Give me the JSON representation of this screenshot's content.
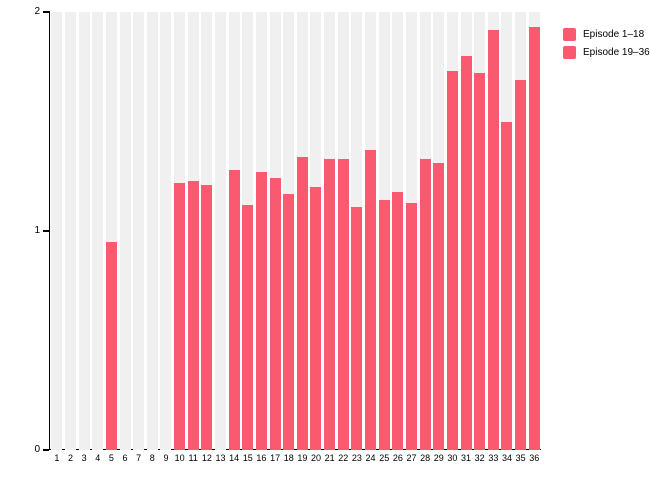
{
  "chart_data": {
    "type": "bar",
    "title": "",
    "xlabel": "",
    "ylabel": "",
    "ylim": [
      0,
      2
    ],
    "yticks": [
      "0",
      "1",
      "2"
    ],
    "grid": false,
    "legend_position": "top-right",
    "bar_color": "#FA5A70",
    "stripe_color": "#F0F0F0",
    "categories": [
      "1",
      "2",
      "3",
      "4",
      "5",
      "6",
      "7",
      "8",
      "9",
      "10",
      "11",
      "12",
      "13",
      "14",
      "15",
      "16",
      "17",
      "18",
      "19",
      "20",
      "21",
      "22",
      "23",
      "24",
      "25",
      "26",
      "27",
      "28",
      "29",
      "30",
      "31",
      "32",
      "33",
      "34",
      "35",
      "36"
    ],
    "values": [
      0,
      0,
      0,
      0,
      0.95,
      0,
      0,
      0,
      0,
      1.22,
      1.23,
      1.21,
      0,
      1.28,
      1.12,
      1.27,
      1.24,
      1.17,
      1.34,
      1.2,
      1.33,
      1.33,
      1.11,
      1.37,
      1.14,
      1.18,
      1.13,
      1.33,
      1.31,
      1.73,
      1.8,
      1.72,
      1.92,
      1.5,
      1.69,
      1.93
    ],
    "legend": [
      {
        "label": "Episode 1–18",
        "color": "#FA5A70"
      },
      {
        "label": "Episode 19–36",
        "color": "#FA5A70"
      }
    ]
  }
}
